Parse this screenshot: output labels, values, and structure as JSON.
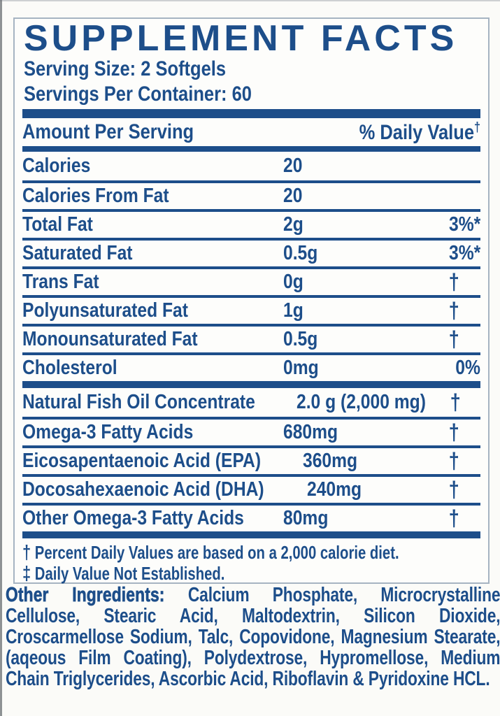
{
  "supplement_facts": {
    "title": "SUPPLEMENT FACTS",
    "serving_size": "Serving Size: 2 Softgels",
    "servings_per_container": "Servings Per Container: 60",
    "columns": {
      "amount_header": "Amount Per Serving",
      "daily_value_header": "% Daily Value",
      "daily_value_symbol": "†"
    },
    "main_rows": [
      {
        "name": "Calories",
        "amount": "20",
        "dv": ""
      },
      {
        "name": "Calories From Fat",
        "amount": "20",
        "dv": ""
      },
      {
        "name": "Total Fat",
        "amount": "2g",
        "dv": "3%*"
      },
      {
        "name": "Saturated Fat",
        "amount": "0.5g",
        "dv": "3%*"
      },
      {
        "name": "Trans Fat",
        "amount": "0g",
        "dv": "†"
      },
      {
        "name": "Polyunsaturated Fat",
        "amount": "1g",
        "dv": "†"
      },
      {
        "name": "Monounsaturated Fat",
        "amount": "0.5g",
        "dv": "†"
      },
      {
        "name": "Cholesterol",
        "amount": "0mg",
        "dv": "0%"
      }
    ],
    "oil_rows": [
      {
        "name": "Natural Fish Oil Concentrate",
        "amount": "2.0 g (2,000 mg)",
        "dv": "†"
      },
      {
        "name": "Omega-3 Fatty Acids",
        "amount": "680mg",
        "dv": "†"
      },
      {
        "name": "Eicosapentaenoic Acid (EPA)",
        "amount": "360mg",
        "dv": "†"
      },
      {
        "name": "Docosahexaenoic Acid (DHA)",
        "amount": "240mg",
        "dv": "†"
      },
      {
        "name": "Other Omega-3 Fatty Acids",
        "amount": "80mg",
        "dv": "†"
      }
    ],
    "footnotes": [
      {
        "symbol": "†",
        "text": "Percent Daily Values are based on a 2,000 calorie diet."
      },
      {
        "symbol": "‡",
        "text": "Daily Value Not Established."
      }
    ],
    "other_ingredients": {
      "label": "Other Ingredients:",
      "text": "Calcium Phosphate, Microcrystalline Cellulose, Stearic Acid, Maltodextrin, Silicon Dioxide, Croscarmellose Sodium, Talc, Copovidone, Magnesium Stearate, (aqeous Film Coating), Polydextrose, Hypromellose, Medium Chain Triglycerides, Ascorbic Acid, Riboflavin & Pyridoxine HCL."
    },
    "colors": {
      "brand_blue": "#1d4e8a",
      "box_border": "#a6b4c2"
    }
  }
}
